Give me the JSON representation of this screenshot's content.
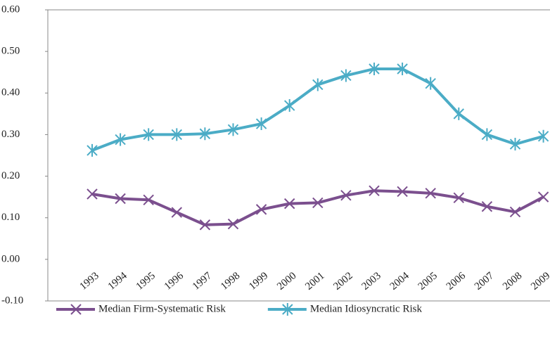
{
  "chart_data": {
    "type": "line",
    "categories": [
      "1993",
      "1994",
      "1995",
      "1996",
      "1997",
      "1998",
      "1999",
      "2000",
      "2001",
      "2002",
      "2003",
      "2004",
      "2005",
      "2006",
      "2007",
      "2008",
      "2009"
    ],
    "series": [
      {
        "name": "Median Firm-Systematic Risk",
        "color": "#7b4f8e",
        "marker": "x",
        "values": [
          0.157,
          0.146,
          0.143,
          0.113,
          0.083,
          0.085,
          0.12,
          0.134,
          0.136,
          0.154,
          0.165,
          0.163,
          0.159,
          0.148,
          0.127,
          0.114,
          0.15
        ]
      },
      {
        "name": "Median Idiosyncratic Risk",
        "color": "#4bacc6",
        "marker": "asterisk",
        "values": [
          0.262,
          0.288,
          0.3,
          0.3,
          0.302,
          0.312,
          0.326,
          0.37,
          0.42,
          0.442,
          0.458,
          0.458,
          0.423,
          0.35,
          0.3,
          0.277,
          0.296
        ]
      }
    ],
    "ylim": [
      -0.1,
      0.6
    ],
    "yticks": [
      {
        "value": -0.1,
        "label": "-0.10"
      },
      {
        "value": 0,
        "label": "0.00"
      },
      {
        "value": 0.1,
        "label": "0.10"
      },
      {
        "value": 0.2,
        "label": "0.20"
      },
      {
        "value": 0.3,
        "label": "0.30"
      },
      {
        "value": 0.4,
        "label": "0.40"
      },
      {
        "value": 0.5,
        "label": "0.50"
      },
      {
        "value": 0.6,
        "label": "0.60"
      }
    ],
    "grid": false,
    "legend": "bottom"
  }
}
